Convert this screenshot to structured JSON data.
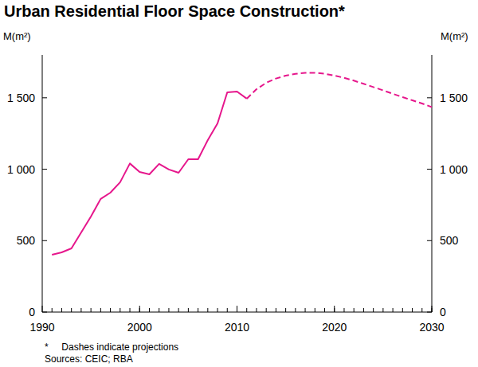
{
  "chart_data": {
    "type": "line",
    "title": "Urban Residential Floor Space Construction*",
    "y_label": "M(m²)",
    "y2_label": "M(m²)",
    "note": "*     Dashes indicate projections",
    "source": "Sources: CEIC; RBA",
    "x": [
      1991,
      1992,
      1993,
      1994,
      1995,
      1996,
      1997,
      1998,
      1999,
      2000,
      2001,
      2002,
      2003,
      2004,
      2005,
      2006,
      2007,
      2008,
      2009,
      2010,
      2011,
      2012,
      2013,
      2014,
      2015,
      2016,
      2017,
      2018,
      2019,
      2020,
      2021,
      2022,
      2023,
      2024,
      2025,
      2026,
      2027,
      2028,
      2029,
      2030
    ],
    "series": [
      {
        "color": "#e6178c",
        "line_style": "solid",
        "values": [
          401,
          418,
          446,
          557,
          669,
          792,
          836,
          909,
          1040,
          981,
          964,
          1037,
          998,
          975,
          1070,
          1070,
          1204,
          1321,
          1538,
          1544,
          1494,
          null,
          null,
          null,
          null,
          null,
          null,
          null,
          null,
          null,
          null,
          null,
          null,
          null,
          null,
          null,
          null,
          null,
          null,
          null
        ]
      },
      {
        "color": "#e6178c",
        "line_style": "dashed",
        "values": [
          null,
          null,
          null,
          null,
          null,
          null,
          null,
          null,
          null,
          null,
          null,
          null,
          null,
          null,
          null,
          null,
          null,
          null,
          null,
          null,
          1494,
          1560,
          1605,
          1635,
          1655,
          1668,
          1675,
          1675,
          1668,
          1655,
          1640,
          1620,
          1598,
          1575,
          1552,
          1528,
          1505,
          1482,
          1460,
          1435
        ]
      }
    ],
    "xlim": [
      1990,
      2030
    ],
    "xticks": [
      1990,
      2000,
      2010,
      2020,
      2030
    ],
    "ylim": [
      0,
      1800
    ],
    "yticks": [
      0,
      500,
      {
        "value": 1000,
        "label": "1 000"
      },
      {
        "value": 1500,
        "label": "1 500"
      }
    ],
    "y2lim": [
      0,
      1800
    ],
    "y2ticks": [
      0,
      500,
      {
        "value": 1000,
        "label": "1 000"
      },
      {
        "value": 1500,
        "label": "1 500"
      }
    ],
    "grid": false
  }
}
